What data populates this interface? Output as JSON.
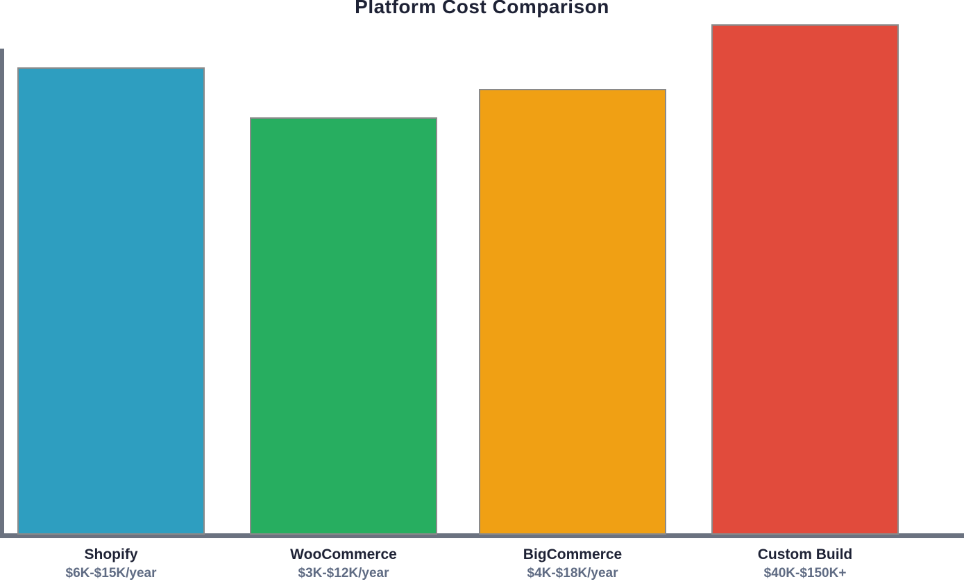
{
  "chart_data": {
    "type": "bar",
    "title": "Platform Cost Comparison",
    "categories": [
      "Shopify",
      "WooCommerce",
      "BigCommerce",
      "Custom Build"
    ],
    "value_labels": [
      "$6K-$15K/year",
      "$3K-$12K/year",
      "$4K-$18K/year",
      "$40K-$150K+"
    ],
    "series": [
      {
        "name": "Relative annual cost (bar height, px)",
        "values": [
          673,
          601,
          642,
          735
        ]
      }
    ],
    "bar_colors": [
      "#2E9EC0",
      "#27AE60",
      "#F0A014",
      "#E14B3C"
    ],
    "xlabel": "",
    "ylabel": "",
    "axes": {
      "y_tick_labels": "none",
      "x_axis_line": true,
      "y_axis_line": true
    },
    "legend": "none"
  },
  "style": {
    "background": "#FFFFFF",
    "title_color": "#1E2235",
    "category_label_color": "#1E2235",
    "range_label_color": "#5F6B83",
    "axis_color": "#6B7280",
    "bar_border_color": "#8A8A8A"
  }
}
